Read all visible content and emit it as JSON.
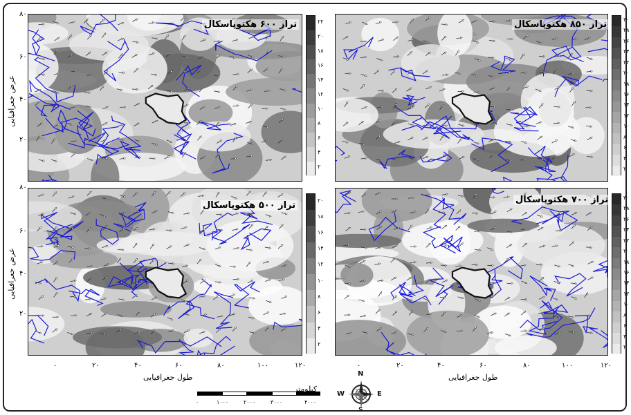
{
  "panels": [
    {
      "id": "tl",
      "title": "تراز ۶۰۰ هکتوپاسکال",
      "legend": [
        "۲۲",
        "۲۰",
        "۱۸",
        "۱۶",
        "۱۴",
        "۱۲",
        "۱۰",
        "۸",
        "۶",
        "۴",
        "۲"
      ]
    },
    {
      "id": "tr",
      "title": "تراز ۸۵۰ هکتوپاسکال",
      "legend": [
        "۳۰",
        "۲۸",
        "۲۶",
        "۲۴",
        "۲۲",
        "۲۰",
        "۱۸",
        "۱۶",
        "۱۴",
        "۱۲",
        "۱۰",
        "۸",
        "۶",
        "۴",
        "۲"
      ]
    },
    {
      "id": "bl",
      "title": "تراز ۵۰۰ هکتوپاسکال",
      "legend": [
        "۲۰",
        "۱۸",
        "۱۶",
        "۱۴",
        "۱۲",
        "۱۰",
        "۸",
        "۶",
        "۴",
        "۲"
      ]
    },
    {
      "id": "br",
      "title": "تراز ۷۰۰ هکتوپاسکال",
      "legend": [
        "۳۰",
        "۲۸",
        "۲۶",
        "۲۴",
        "۲۲",
        "۲۰",
        "۱۸",
        "۱۶",
        "۱۴",
        "۱۲",
        "۱۰",
        "۸",
        "۶",
        "۴",
        "۲"
      ]
    }
  ],
  "lat_ticks": [
    "۸۰",
    "۶۰",
    "۴۰",
    "۲۰"
  ],
  "lon_ticks_left": [
    "۰",
    "۲۰",
    "۴۰",
    "۶۰",
    "۸۰",
    "۱۰۰",
    "۱۲۰"
  ],
  "lon_ticks_right": [
    "۰",
    "۲۰",
    "۴۰",
    "۶۰",
    "۸۰",
    "۱۰۰",
    "۱۲۰"
  ],
  "xlabel_left": "طول جغرافیایی",
  "xlabel_right": "طول جغرافیایی",
  "ylabel_top": "عرض جغرافیایی",
  "ylabel_bottom": "عرض جغرافیایی",
  "scale": {
    "title": "کیلومتر",
    "labels": [
      "۰",
      "۱۰۰۰",
      "۲۰۰۰",
      "۳۰۰۰",
      "۴۰۰۰"
    ]
  },
  "compass": {
    "n": "N",
    "s": "S",
    "e": "E",
    "w": "W"
  },
  "colors": {
    "coast": "#1a1ad6",
    "iran": "#111111",
    "dark": "#3a3a3a",
    "mid": "#8a8a8a",
    "light": "#e6e6e6"
  }
}
